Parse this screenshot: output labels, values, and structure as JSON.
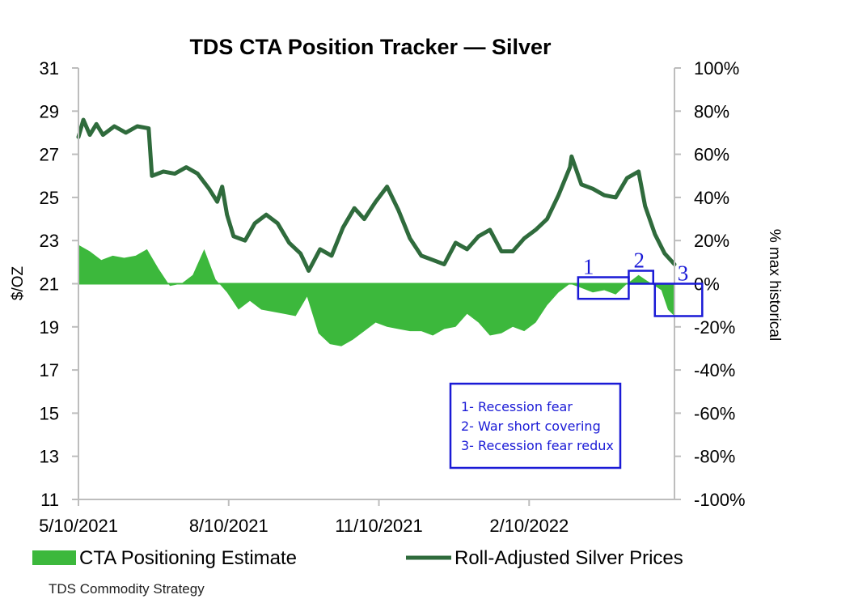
{
  "chart_data": {
    "type": "area",
    "title": "TDS CTA Position Tracker — Silver",
    "ylabel_left": "$/OZ",
    "ylabel_right": "% max historical",
    "left_axis": {
      "min": 11,
      "max": 31,
      "ticks": [
        11,
        13,
        15,
        17,
        19,
        21,
        23,
        25,
        27,
        29,
        31
      ]
    },
    "right_axis": {
      "min": -100,
      "max": 100,
      "ticks": [
        -100,
        -80,
        -60,
        -40,
        -20,
        0,
        20,
        40,
        60,
        80,
        100
      ],
      "tick_labels": [
        "-100%",
        "-80%",
        "-60%",
        "-40%",
        "-20%",
        "0%",
        "20%",
        "40%",
        "60%",
        "80%",
        "100%"
      ]
    },
    "x_range": [
      "2021-05-10",
      "2022-05-10"
    ],
    "x_ticks": [
      {
        "date": "2021-05-10",
        "label": "5/10/2021"
      },
      {
        "date": "2021-08-10",
        "label": "8/10/2021"
      },
      {
        "date": "2021-11-10",
        "label": "11/10/2021"
      },
      {
        "date": "2022-02-10",
        "label": "2/10/2022"
      }
    ],
    "legend": {
      "position": "bottom",
      "items": [
        {
          "name": "CTA Positioning Estimate",
          "swatch": "area"
        },
        {
          "name": "Roll-Adjusted Silver Prices",
          "swatch": "line"
        }
      ]
    },
    "series": [
      {
        "name": "Roll-Adjusted Silver Prices",
        "axis": "left",
        "color": "#2f6b3c",
        "points": [
          [
            "2021-05-10",
            27.8
          ],
          [
            "2021-05-13",
            28.6
          ],
          [
            "2021-05-17",
            27.9
          ],
          [
            "2021-05-21",
            28.4
          ],
          [
            "2021-05-25",
            27.9
          ],
          [
            "2021-06-01",
            28.3
          ],
          [
            "2021-06-08",
            28.0
          ],
          [
            "2021-06-15",
            28.3
          ],
          [
            "2021-06-22",
            28.2
          ],
          [
            "2021-06-24",
            26.0
          ],
          [
            "2021-07-01",
            26.2
          ],
          [
            "2021-07-08",
            26.1
          ],
          [
            "2021-07-15",
            26.4
          ],
          [
            "2021-07-22",
            26.1
          ],
          [
            "2021-07-29",
            25.4
          ],
          [
            "2021-08-03",
            24.8
          ],
          [
            "2021-08-06",
            25.5
          ],
          [
            "2021-08-09",
            24.2
          ],
          [
            "2021-08-13",
            23.2
          ],
          [
            "2021-08-20",
            23.0
          ],
          [
            "2021-08-26",
            23.8
          ],
          [
            "2021-09-02",
            24.2
          ],
          [
            "2021-09-09",
            23.8
          ],
          [
            "2021-09-16",
            22.9
          ],
          [
            "2021-09-23",
            22.4
          ],
          [
            "2021-09-28",
            21.6
          ],
          [
            "2021-10-05",
            22.6
          ],
          [
            "2021-10-12",
            22.3
          ],
          [
            "2021-10-19",
            23.6
          ],
          [
            "2021-10-26",
            24.5
          ],
          [
            "2021-11-01",
            24.0
          ],
          [
            "2021-11-08",
            24.8
          ],
          [
            "2021-11-15",
            25.5
          ],
          [
            "2021-11-22",
            24.4
          ],
          [
            "2021-11-29",
            23.1
          ],
          [
            "2021-12-06",
            22.3
          ],
          [
            "2021-12-13",
            22.1
          ],
          [
            "2021-12-20",
            21.9
          ],
          [
            "2021-12-27",
            22.9
          ],
          [
            "2022-01-03",
            22.6
          ],
          [
            "2022-01-10",
            23.2
          ],
          [
            "2022-01-17",
            23.5
          ],
          [
            "2022-01-24",
            22.5
          ],
          [
            "2022-01-31",
            22.5
          ],
          [
            "2022-02-07",
            23.1
          ],
          [
            "2022-02-14",
            23.5
          ],
          [
            "2022-02-21",
            24.0
          ],
          [
            "2022-02-28",
            25.1
          ],
          [
            "2022-03-07",
            26.4
          ],
          [
            "2022-03-08",
            26.9
          ],
          [
            "2022-03-14",
            25.6
          ],
          [
            "2022-03-21",
            25.4
          ],
          [
            "2022-03-28",
            25.1
          ],
          [
            "2022-04-04",
            25.0
          ],
          [
            "2022-04-11",
            25.9
          ],
          [
            "2022-04-18",
            26.2
          ],
          [
            "2022-04-22",
            24.6
          ],
          [
            "2022-04-28",
            23.3
          ],
          [
            "2022-05-04",
            22.4
          ],
          [
            "2022-05-10",
            21.9
          ]
        ]
      },
      {
        "name": "CTA Positioning Estimate",
        "axis": "right",
        "unit": "% max historical",
        "color": "#3cb83c",
        "points": [
          [
            "2021-05-10",
            18
          ],
          [
            "2021-05-17",
            15
          ],
          [
            "2021-05-24",
            11
          ],
          [
            "2021-05-31",
            13
          ],
          [
            "2021-06-07",
            12
          ],
          [
            "2021-06-14",
            13
          ],
          [
            "2021-06-21",
            16
          ],
          [
            "2021-06-28",
            7
          ],
          [
            "2021-07-05",
            -1
          ],
          [
            "2021-07-12",
            0
          ],
          [
            "2021-07-19",
            4
          ],
          [
            "2021-07-26",
            16
          ],
          [
            "2021-08-02",
            2
          ],
          [
            "2021-08-09",
            -4
          ],
          [
            "2021-08-16",
            -12
          ],
          [
            "2021-08-23",
            -8
          ],
          [
            "2021-08-30",
            -12
          ],
          [
            "2021-09-06",
            -13
          ],
          [
            "2021-09-13",
            -14
          ],
          [
            "2021-09-20",
            -15
          ],
          [
            "2021-09-27",
            -6
          ],
          [
            "2021-10-04",
            -23
          ],
          [
            "2021-10-11",
            -28
          ],
          [
            "2021-10-18",
            -29
          ],
          [
            "2021-10-25",
            -26
          ],
          [
            "2021-11-01",
            -22
          ],
          [
            "2021-11-08",
            -18
          ],
          [
            "2021-11-15",
            -20
          ],
          [
            "2021-11-22",
            -21
          ],
          [
            "2021-11-29",
            -22
          ],
          [
            "2021-12-06",
            -22
          ],
          [
            "2021-12-13",
            -24
          ],
          [
            "2021-12-20",
            -21
          ],
          [
            "2021-12-27",
            -20
          ],
          [
            "2022-01-03",
            -14
          ],
          [
            "2022-01-10",
            -18
          ],
          [
            "2022-01-17",
            -24
          ],
          [
            "2022-01-24",
            -23
          ],
          [
            "2022-01-31",
            -20
          ],
          [
            "2022-02-07",
            -22
          ],
          [
            "2022-02-14",
            -18
          ],
          [
            "2022-02-21",
            -10
          ],
          [
            "2022-02-28",
            -4
          ],
          [
            "2022-03-07",
            0
          ],
          [
            "2022-03-14",
            -2
          ],
          [
            "2022-03-21",
            -4
          ],
          [
            "2022-03-28",
            -3
          ],
          [
            "2022-04-04",
            -5
          ],
          [
            "2022-04-11",
            0
          ],
          [
            "2022-04-18",
            4
          ],
          [
            "2022-04-22",
            2
          ],
          [
            "2022-04-26",
            0
          ],
          [
            "2022-05-02",
            -3
          ],
          [
            "2022-05-06",
            -12
          ],
          [
            "2022-05-10",
            -15
          ]
        ]
      }
    ],
    "annotations": {
      "markers": [
        {
          "label": "1",
          "x_start": "2022-03-12",
          "x_end": "2022-04-12",
          "y_from": -7,
          "y_to": 3
        },
        {
          "label": "2",
          "x_start": "2022-04-12",
          "x_end": "2022-04-27",
          "y_from": 0,
          "y_to": 6
        },
        {
          "label": "3",
          "x_start": "2022-04-28",
          "x_end": "2022-05-27",
          "y_from": -15,
          "y_to": 0
        }
      ],
      "notes": [
        "1- Recession fear",
        "2- War short covering",
        "3- Recession fear redux"
      ],
      "color": "#1a1ad6"
    },
    "source_text": "TDS Commodity Strategy"
  }
}
